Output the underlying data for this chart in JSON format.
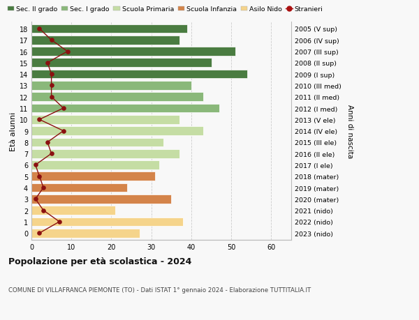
{
  "ages": [
    0,
    1,
    2,
    3,
    4,
    5,
    6,
    7,
    8,
    9,
    10,
    11,
    12,
    13,
    14,
    15,
    16,
    17,
    18
  ],
  "labels_right": [
    "2023 (nido)",
    "2022 (nido)",
    "2021 (nido)",
    "2020 (mater)",
    "2019 (mater)",
    "2018 (mater)",
    "2017 (I ele)",
    "2016 (II ele)",
    "2015 (III ele)",
    "2014 (IV ele)",
    "2013 (V ele)",
    "2012 (I med)",
    "2011 (II med)",
    "2010 (III med)",
    "2009 (I sup)",
    "2008 (II sup)",
    "2007 (III sup)",
    "2006 (IV sup)",
    "2005 (V sup)"
  ],
  "bar_values": [
    27,
    38,
    21,
    35,
    24,
    31,
    32,
    37,
    33,
    43,
    37,
    47,
    43,
    40,
    54,
    45,
    51,
    37,
    39
  ],
  "bar_colors": [
    "#f5d48b",
    "#f5d48b",
    "#f5d48b",
    "#d4844a",
    "#d4844a",
    "#d4844a",
    "#c5dda4",
    "#c5dda4",
    "#c5dda4",
    "#c5dda4",
    "#c5dda4",
    "#8ab87a",
    "#8ab87a",
    "#8ab87a",
    "#4a7c41",
    "#4a7c41",
    "#4a7c41",
    "#4a7c41",
    "#4a7c41"
  ],
  "stranieri_values": [
    2,
    7,
    3,
    1,
    3,
    2,
    1,
    5,
    4,
    8,
    2,
    8,
    5,
    5,
    5,
    4,
    9,
    5,
    2
  ],
  "legend_labels": [
    "Sec. II grado",
    "Sec. I grado",
    "Scuola Primaria",
    "Scuola Infanzia",
    "Asilo Nido",
    "Stranieri"
  ],
  "legend_colors": [
    "#4a7c41",
    "#8ab87a",
    "#c5dda4",
    "#d4844a",
    "#f5d48b",
    "#aa1111"
  ],
  "ylabel_left": "Età alunni",
  "ylabel_right": "Anni di nascita",
  "title_bold": "Popolazione per età scolastica - 2024",
  "subtitle": "COMUNE DI VILLAFRANCA PIEMONTE (TO) - Dati ISTAT 1° gennaio 2024 - Elaborazione TUTTITALIA.IT",
  "xlim": [
    0,
    65
  ],
  "xticks": [
    0,
    10,
    20,
    30,
    40,
    50,
    60
  ],
  "bg_color": "#f8f8f8",
  "bar_height": 0.78,
  "grid_color": "#cccccc"
}
